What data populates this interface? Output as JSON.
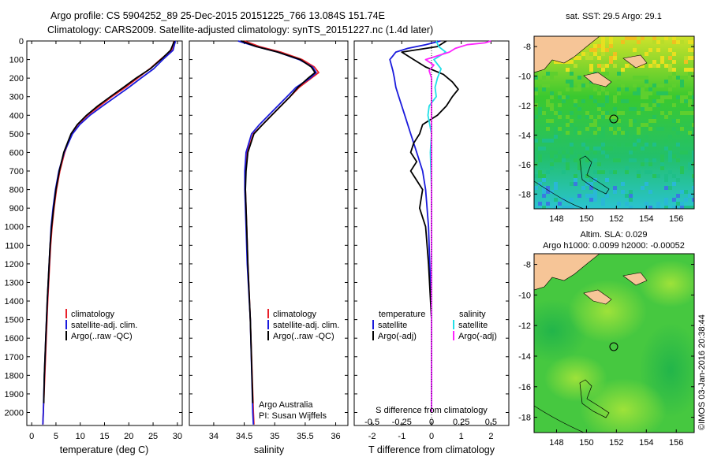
{
  "header": {
    "line1": "Argo profile: CS 5904252_89 25-Dec-2015 20151225_766 13.084S 151.74E",
    "line2": "Climatology: CARS2009. Satellite-adjusted climatology: synTS_20151227.nc (1.4d later)"
  },
  "colors": {
    "red": "#e8202a",
    "blue": "#1a1adc",
    "black": "#000000",
    "cyan": "#22e0e8",
    "magenta": "#ff22ff"
  },
  "chart_data": [
    {
      "type": "line",
      "id": "temperature",
      "xlabel": "temperature (deg C)",
      "ylabel": "",
      "xlim": [
        -1,
        31
      ],
      "ylim": [
        2070,
        0
      ],
      "xticks": [
        "0",
        "5",
        "10",
        "15",
        "20",
        "25",
        "30"
      ],
      "yticks": [
        "0",
        "100",
        "200",
        "300",
        "400",
        "500",
        "600",
        "700",
        "800",
        "900",
        "1000",
        "1100",
        "1200",
        "1300",
        "1400",
        "1500",
        "1600",
        "1700",
        "1800",
        "1900",
        "2000"
      ],
      "legend": [
        "climatology",
        "satellite-adj. clim.",
        "Argo(..raw -QC)"
      ],
      "series": [
        {
          "name": "climatology",
          "color": "red",
          "depth": [
            0,
            50,
            100,
            150,
            200,
            250,
            300,
            350,
            400,
            450,
            500,
            600,
            700,
            800,
            900,
            1000,
            1100,
            1200,
            1400,
            1600,
            1800,
            2000,
            2065
          ],
          "values": [
            29.3,
            28.8,
            26.5,
            24.3,
            21.8,
            19.3,
            16.5,
            14,
            11.5,
            9.5,
            8.2,
            6.8,
            5.8,
            5.1,
            4.6,
            4.2,
            3.9,
            3.7,
            3.3,
            3,
            2.7,
            2.4,
            2.3
          ]
        },
        {
          "name": "satellite-adj. clim.",
          "color": "blue",
          "depth": [
            0,
            50,
            100,
            150,
            200,
            250,
            300,
            350,
            400,
            450,
            500,
            600,
            700,
            800,
            900,
            1000,
            1100,
            1200,
            1400,
            1600,
            1800,
            2000,
            2065
          ],
          "values": [
            29.6,
            29.1,
            27,
            25.1,
            22.5,
            20,
            17.3,
            14.6,
            12,
            9.9,
            8.4,
            6.7,
            5.6,
            4.9,
            4.4,
            4,
            3.8,
            3.6,
            3.2,
            2.9,
            2.6,
            2.4,
            2.3
          ]
        },
        {
          "name": "Argo(..raw -QC)",
          "color": "black",
          "depth": [
            0,
            50,
            100,
            150,
            200,
            250,
            300,
            350,
            400,
            450,
            500,
            600,
            700,
            800,
            900,
            1000,
            1100,
            1200,
            1400,
            1600,
            1800,
            1950
          ],
          "values": [
            29.4,
            28.6,
            26.6,
            24.4,
            21.5,
            18.9,
            16.2,
            13.6,
            11.3,
            9.4,
            8.1,
            6.6,
            5.7,
            5,
            4.5,
            4.1,
            3.8,
            3.6,
            3.2,
            2.9,
            2.6,
            2.5
          ]
        }
      ]
    },
    {
      "type": "line",
      "id": "salinity",
      "xlabel": "salinity",
      "xlim": [
        33.6,
        36.2
      ],
      "ylim": [
        2070,
        0
      ],
      "xticks": [
        "34",
        "34.5",
        "35",
        "35.5",
        "36"
      ],
      "legend": [
        "climatology",
        "satellite-adj. clim.",
        "Argo(..raw -QC)"
      ],
      "credit": [
        "Argo Australia",
        "PI: Susan Wijffels"
      ],
      "series": [
        {
          "name": "climatology",
          "color": "red",
          "depth": [
            0,
            30,
            60,
            100,
            140,
            170,
            200,
            250,
            300,
            350,
            400,
            450,
            500,
            600,
            700,
            800,
            1000,
            1200,
            1500,
            2000,
            2065
          ],
          "values": [
            34.5,
            34.75,
            35.1,
            35.45,
            35.65,
            35.72,
            35.6,
            35.4,
            35.25,
            35.1,
            34.95,
            34.8,
            34.65,
            34.55,
            34.52,
            34.52,
            34.54,
            34.56,
            34.6,
            34.65,
            34.66
          ]
        },
        {
          "name": "satellite-adj. clim.",
          "color": "blue",
          "depth": [
            0,
            30,
            60,
            100,
            140,
            170,
            200,
            250,
            300,
            350,
            400,
            450,
            500,
            600,
            700,
            800,
            1000,
            1200,
            1500,
            2000,
            2065
          ],
          "values": [
            34.4,
            34.7,
            35.05,
            35.4,
            35.62,
            35.68,
            35.58,
            35.35,
            35.2,
            35.05,
            34.9,
            34.75,
            34.62,
            34.53,
            34.51,
            34.51,
            34.53,
            34.55,
            34.6,
            34.64,
            34.65
          ]
        },
        {
          "name": "Argo(..raw -QC)",
          "color": "black",
          "depth": [
            0,
            30,
            60,
            100,
            140,
            170,
            200,
            250,
            300,
            350,
            400,
            450,
            500,
            600,
            700,
            800,
            1000,
            1200,
            1500,
            1950
          ],
          "values": [
            34.45,
            34.7,
            35.05,
            35.42,
            35.6,
            35.66,
            35.55,
            35.38,
            35.25,
            35.1,
            34.95,
            34.8,
            34.66,
            34.56,
            34.53,
            34.52,
            34.54,
            34.56,
            34.6,
            34.64
          ]
        }
      ]
    },
    {
      "type": "line",
      "id": "difference",
      "xlabel": "T difference from climatology",
      "xlabel_top": "S difference from climatology",
      "xlim": [
        -2.6,
        2.6
      ],
      "ylim": [
        2070,
        0
      ],
      "xticks_T": [
        "-2",
        "-1",
        "0",
        "1",
        "2"
      ],
      "xticks_S": [
        "-0.5",
        "-0.25",
        "0",
        "0.25",
        "0.5"
      ],
      "legend_titles": [
        "temperature",
        "salinity"
      ],
      "legend": [
        "satellite",
        "Argo(-adj)",
        "satellite",
        "Argo(-adj)"
      ],
      "series": [
        {
          "name": "T satellite",
          "color": "blue",
          "depth": [
            0,
            20,
            40,
            60,
            80,
            100,
            130,
            160,
            200,
            250,
            300,
            400,
            500,
            600,
            700,
            800,
            1000,
            1500,
            2000
          ],
          "values": [
            0.3,
            -0.2,
            -0.8,
            -1.2,
            -1.3,
            -1.4,
            -1.35,
            -1.3,
            -1.25,
            -1.2,
            -1.1,
            -0.9,
            -0.7,
            -0.5,
            -0.3,
            -0.2,
            -0.1,
            0,
            0
          ]
        },
        {
          "name": "T Argo(-adj)",
          "color": "black",
          "depth": [
            0,
            30,
            60,
            100,
            140,
            180,
            220,
            260,
            300,
            350,
            400,
            450,
            500,
            550,
            600,
            650,
            700,
            800,
            900,
            1000,
            1200,
            1500,
            1900
          ],
          "values": [
            0.5,
            0.2,
            -1,
            -0.6,
            -0.2,
            0.4,
            0.7,
            0.9,
            0.7,
            0.5,
            0.2,
            -0.3,
            -0.4,
            -0.6,
            -0.7,
            -0.5,
            -0.7,
            -0.3,
            -0.4,
            -0.2,
            -0.1,
            0,
            0
          ]
        },
        {
          "name": "S satellite",
          "color": "cyan",
          "depth": [
            0,
            30,
            60,
            100,
            150,
            200,
            250,
            300,
            350,
            400,
            500,
            600,
            800,
            1000,
            1500,
            2000
          ],
          "values": [
            0.04,
            0.06,
            0.12,
            0.02,
            0.08,
            0.05,
            0.03,
            0.04,
            -0.02,
            -0.03,
            0,
            -0.01,
            0,
            0,
            0,
            0
          ]
        },
        {
          "name": "S Argo(-adj)",
          "color": "magenta",
          "depth": [
            0,
            10,
            20,
            40,
            60,
            80,
            100,
            130,
            160,
            200,
            300,
            500,
            800,
            1200,
            2000
          ],
          "values": [
            0.5,
            0.45,
            0.3,
            0.2,
            0.15,
            0.05,
            -0.05,
            0.02,
            -0.02,
            0,
            0,
            0,
            0,
            0,
            0
          ]
        }
      ]
    }
  ],
  "maps": {
    "sst": {
      "title": "sat. SST: 29.5 Argo: 29.1",
      "lon_ticks": [
        "148",
        "150",
        "152",
        "154",
        "156"
      ],
      "lat_ticks": [
        "-8",
        "-10",
        "-12",
        "-14",
        "-16",
        "-18"
      ]
    },
    "sla": {
      "title1": "Altim. SLA: 0.029",
      "title2": "Argo h1000: 0.0099 h2000: -0.00052",
      "lon_ticks": [
        "148",
        "150",
        "152",
        "154",
        "156"
      ],
      "lat_ticks": [
        "-8",
        "-10",
        "-12",
        "-14",
        "-16",
        "-18"
      ]
    }
  },
  "stamp": "©IMOS 03-Jan-2016 20:38:44"
}
